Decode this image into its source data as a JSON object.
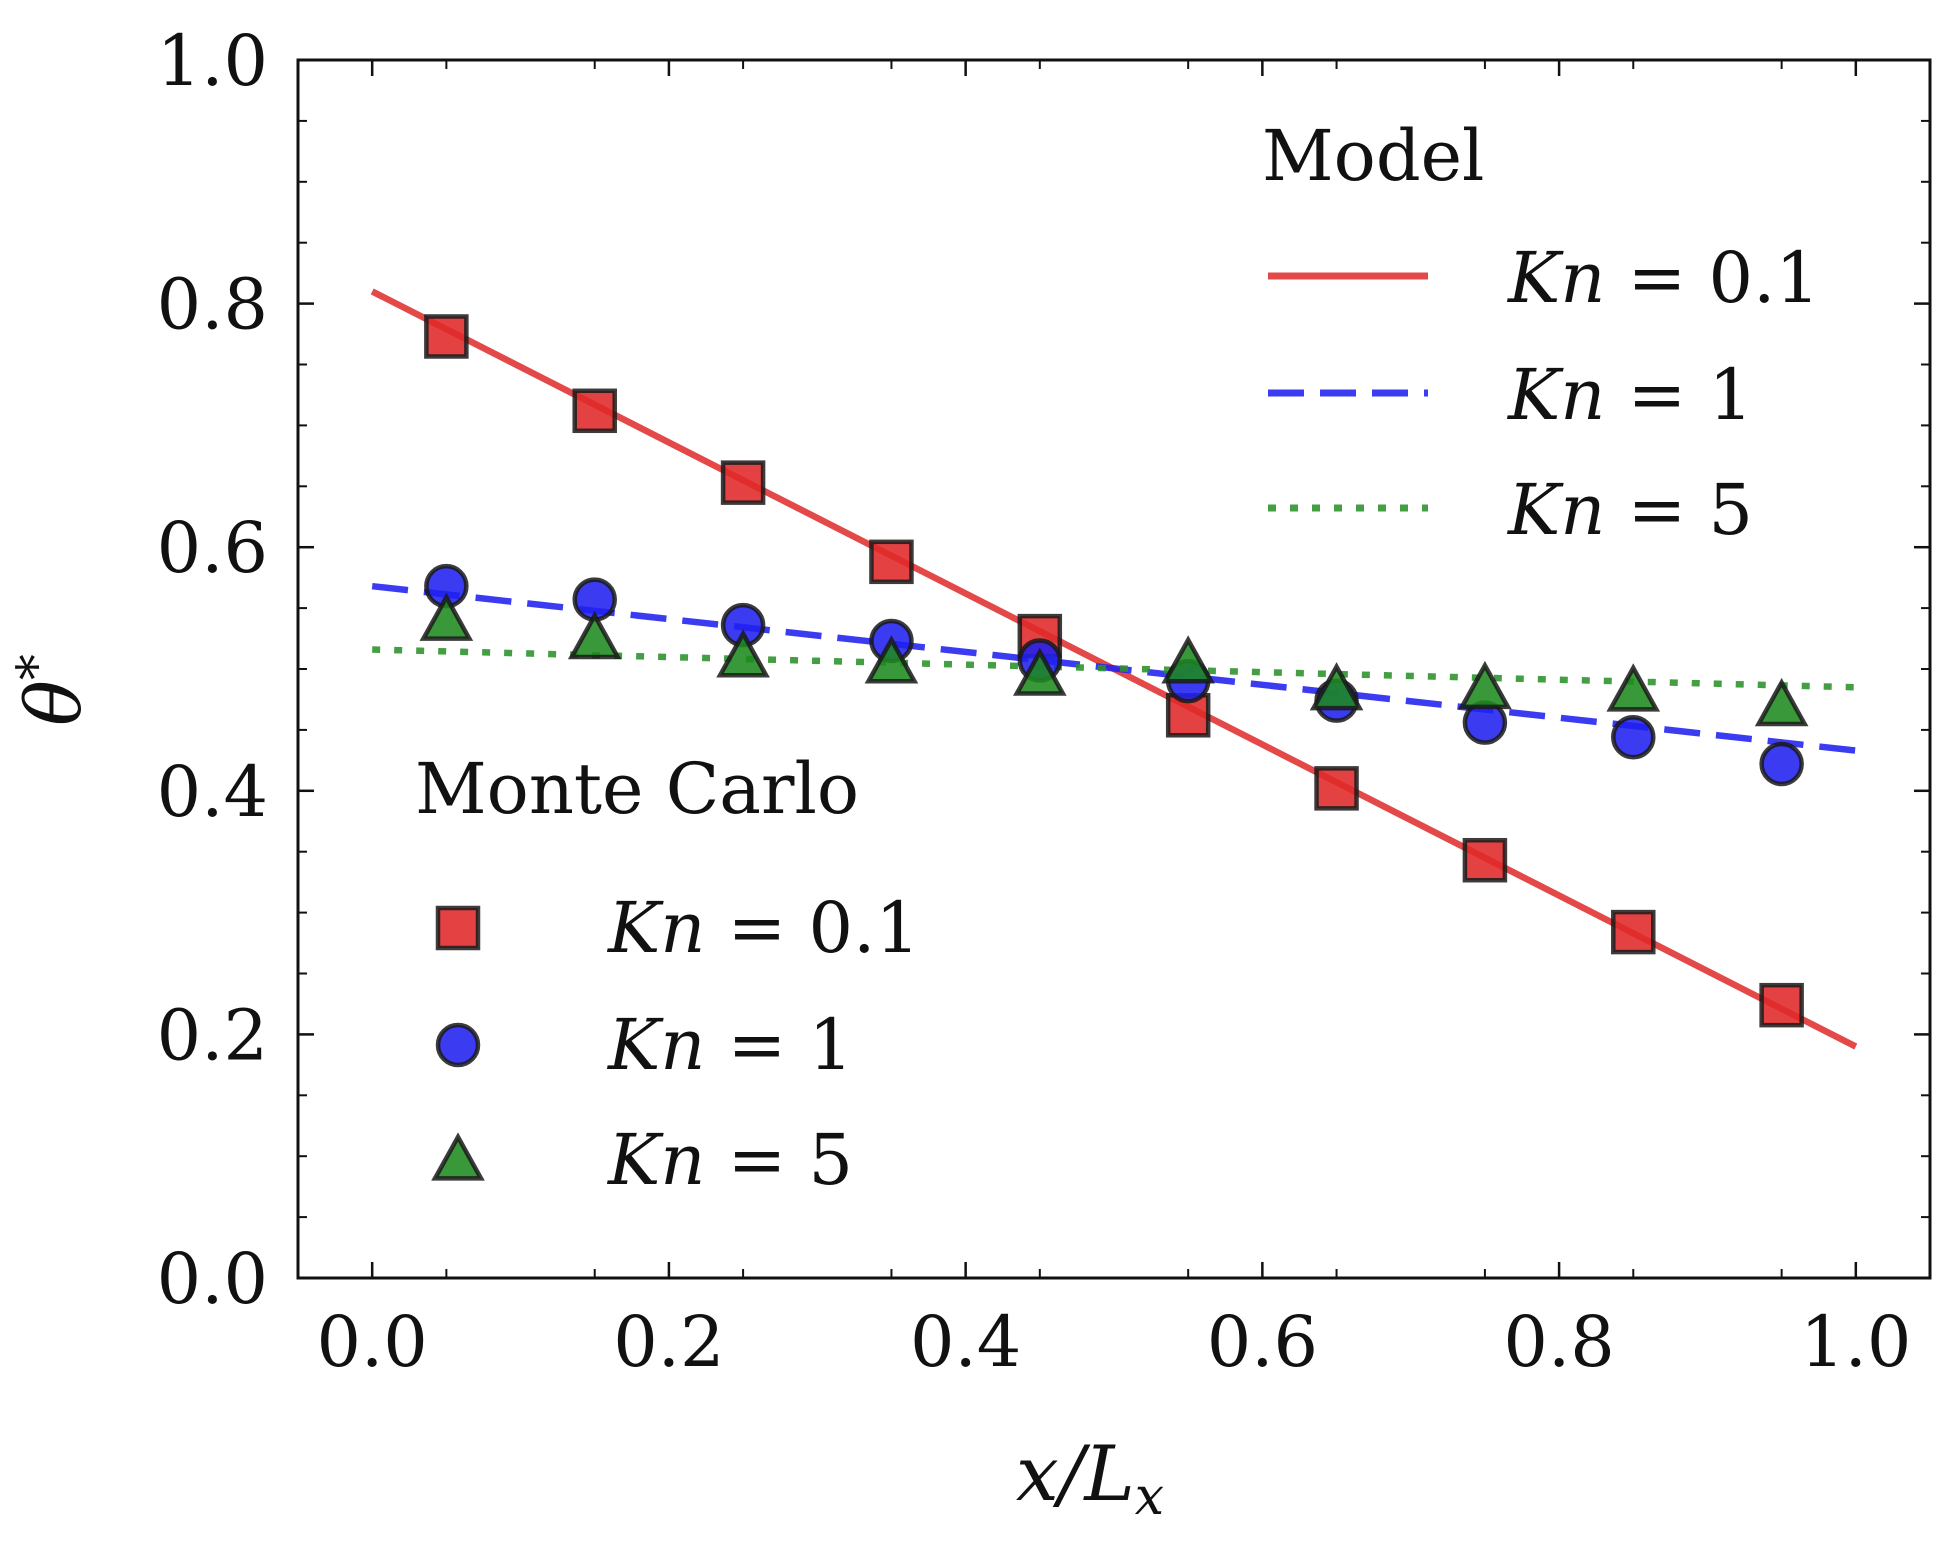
{
  "chart_data": {
    "type": "scatter",
    "xlabel": "x/L_x",
    "ylabel": "θ*",
    "xlim": [
      -0.05,
      1.05
    ],
    "ylim": [
      0.0,
      1.0
    ],
    "xticks": [
      "0.0",
      "0.2",
      "0.4",
      "0.6",
      "0.8",
      "1.0"
    ],
    "yticks": [
      "0.0",
      "0.2",
      "0.4",
      "0.6",
      "0.8",
      "1.0"
    ],
    "model_legend_title": "Model",
    "mc_legend_title": "Monte Carlo",
    "legend_model_placement": "top-right",
    "legend_mc_placement": "bottom-left",
    "lines": [
      {
        "name": "Kn = 0.1",
        "kn": "0.1",
        "style": "solid",
        "color": "#e03030",
        "x": [
          0.0,
          1.0
        ],
        "y": [
          0.81,
          0.19
        ]
      },
      {
        "name": "Kn = 1",
        "kn": "1",
        "style": "dashed",
        "color": "#2020f0",
        "x": [
          0.0,
          1.0
        ],
        "y": [
          0.568,
          0.433
        ]
      },
      {
        "name": "Kn = 5",
        "kn": "5",
        "style": "dotted",
        "color": "#2a922a",
        "x": [
          0.0,
          1.0
        ],
        "y": [
          0.516,
          0.485
        ]
      }
    ],
    "series": [
      {
        "name": "Kn = 0.1",
        "kn": "0.1",
        "marker": "square",
        "color": "#e02828",
        "x": [
          0.05,
          0.15,
          0.25,
          0.35,
          0.45,
          0.55,
          0.65,
          0.75,
          0.85,
          0.95
        ],
        "y": [
          0.773,
          0.712,
          0.653,
          0.588,
          0.527,
          0.462,
          0.402,
          0.343,
          0.284,
          0.224
        ]
      },
      {
        "name": "Kn = 1",
        "kn": "1",
        "marker": "circle",
        "color": "#2020f0",
        "x": [
          0.05,
          0.15,
          0.25,
          0.35,
          0.45,
          0.55,
          0.65,
          0.75,
          0.85,
          0.95
        ],
        "y": [
          0.568,
          0.557,
          0.536,
          0.523,
          0.507,
          0.49,
          0.474,
          0.456,
          0.444,
          0.422
        ]
      },
      {
        "name": "Kn = 5",
        "kn": "5",
        "marker": "triangle",
        "color": "#1e8a1e",
        "x": [
          0.05,
          0.15,
          0.25,
          0.35,
          0.45,
          0.55,
          0.65,
          0.75,
          0.85,
          0.95
        ],
        "y": [
          0.54,
          0.525,
          0.51,
          0.505,
          0.495,
          0.505,
          0.483,
          0.484,
          0.482,
          0.47
        ]
      }
    ]
  }
}
